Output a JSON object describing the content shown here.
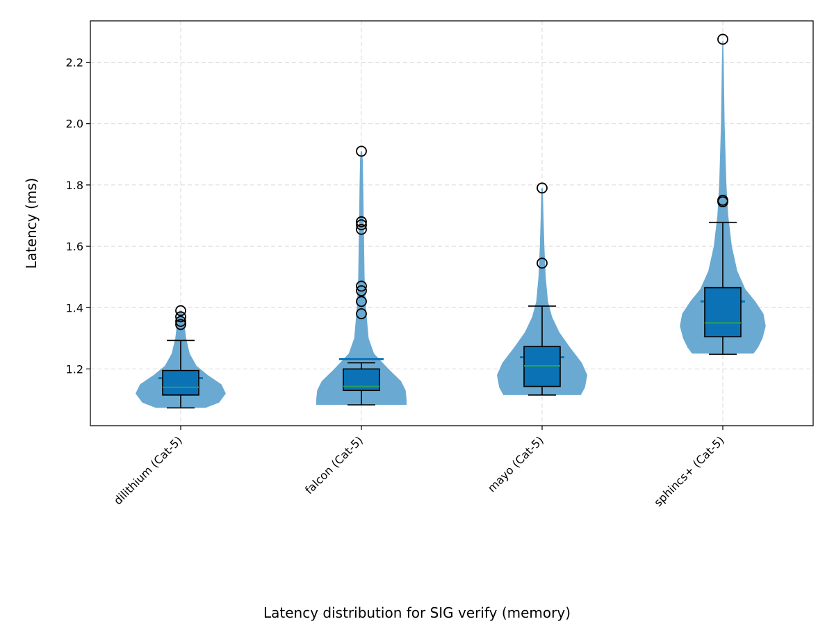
{
  "chart_data": {
    "type": "violin",
    "caption": "Latency distribution for SIG verify (memory)",
    "ylabel": "Latency (ms)",
    "xlabel": "",
    "ylim": [
      1.015,
      2.335
    ],
    "yticks": [
      1.2,
      1.4,
      1.6,
      1.8,
      2.0,
      2.2
    ],
    "ytick_labels": [
      "1.2",
      "1.4",
      "1.6",
      "1.8",
      "2.0",
      "2.2"
    ],
    "grid": true,
    "colors": {
      "violin": "#6aaad2",
      "box": "#0a72b5",
      "median": "#2ca05a",
      "mean": "#0a72b5",
      "outline": "#000000",
      "grid": "#d9d9d9"
    },
    "categories": [
      "dilithium (Cat-5)",
      "falcon (Cat-5)",
      "mayo (Cat-5)",
      "sphincs+ (Cat-5)"
    ],
    "series": [
      {
        "q1": 1.115,
        "median": 1.14,
        "q3": 1.195,
        "mean": 1.17,
        "whisker_low": 1.073,
        "whisker_high": 1.293,
        "outliers": [
          1.345,
          1.355,
          1.37,
          1.39
        ],
        "density": [
          [
            1.073,
            0.55
          ],
          [
            1.09,
            0.85
          ],
          [
            1.12,
            1.0
          ],
          [
            1.15,
            0.9
          ],
          [
            1.18,
            0.6
          ],
          [
            1.21,
            0.35
          ],
          [
            1.25,
            0.2
          ],
          [
            1.3,
            0.12
          ],
          [
            1.35,
            0.08
          ],
          [
            1.39,
            0.03
          ]
        ]
      },
      {
        "q1": 1.13,
        "median": 1.143,
        "q3": 1.2,
        "mean": 1.232,
        "whisker_low": 1.083,
        "whisker_high": 1.22,
        "outliers": [
          1.38,
          1.42,
          1.455,
          1.47,
          1.655,
          1.67,
          1.68,
          1.91
        ],
        "density": [
          [
            1.083,
            1.0
          ],
          [
            1.1,
            1.0
          ],
          [
            1.13,
            0.98
          ],
          [
            1.16,
            0.88
          ],
          [
            1.2,
            0.6
          ],
          [
            1.25,
            0.28
          ],
          [
            1.3,
            0.16
          ],
          [
            1.4,
            0.1
          ],
          [
            1.5,
            0.07
          ],
          [
            1.6,
            0.06
          ],
          [
            1.7,
            0.05
          ],
          [
            1.8,
            0.04
          ],
          [
            1.88,
            0.03
          ],
          [
            1.91,
            0.015
          ]
        ]
      },
      {
        "q1": 1.143,
        "median": 1.21,
        "q3": 1.273,
        "mean": 1.238,
        "whisker_low": 1.115,
        "whisker_high": 1.405,
        "outliers": [
          1.545,
          1.79
        ],
        "density": [
          [
            1.115,
            0.86
          ],
          [
            1.14,
            0.95
          ],
          [
            1.18,
            1.0
          ],
          [
            1.22,
            0.88
          ],
          [
            1.27,
            0.62
          ],
          [
            1.32,
            0.38
          ],
          [
            1.37,
            0.22
          ],
          [
            1.42,
            0.13
          ],
          [
            1.5,
            0.08
          ],
          [
            1.6,
            0.05
          ],
          [
            1.7,
            0.03
          ],
          [
            1.79,
            0.015
          ]
        ]
      },
      {
        "q1": 1.305,
        "median": 1.35,
        "q3": 1.465,
        "mean": 1.42,
        "whisker_low": 1.248,
        "whisker_high": 1.678,
        "outliers": [
          1.745,
          1.75,
          2.275
        ],
        "density": [
          [
            1.25,
            0.68
          ],
          [
            1.27,
            0.78
          ],
          [
            1.3,
            0.88
          ],
          [
            1.34,
            0.95
          ],
          [
            1.38,
            0.9
          ],
          [
            1.42,
            0.72
          ],
          [
            1.46,
            0.5
          ],
          [
            1.52,
            0.32
          ],
          [
            1.6,
            0.2
          ],
          [
            1.7,
            0.12
          ],
          [
            1.8,
            0.08
          ],
          [
            1.9,
            0.06
          ],
          [
            2.0,
            0.04
          ],
          [
            2.1,
            0.03
          ],
          [
            2.2,
            0.02
          ],
          [
            2.27,
            0.01
          ]
        ]
      }
    ]
  }
}
